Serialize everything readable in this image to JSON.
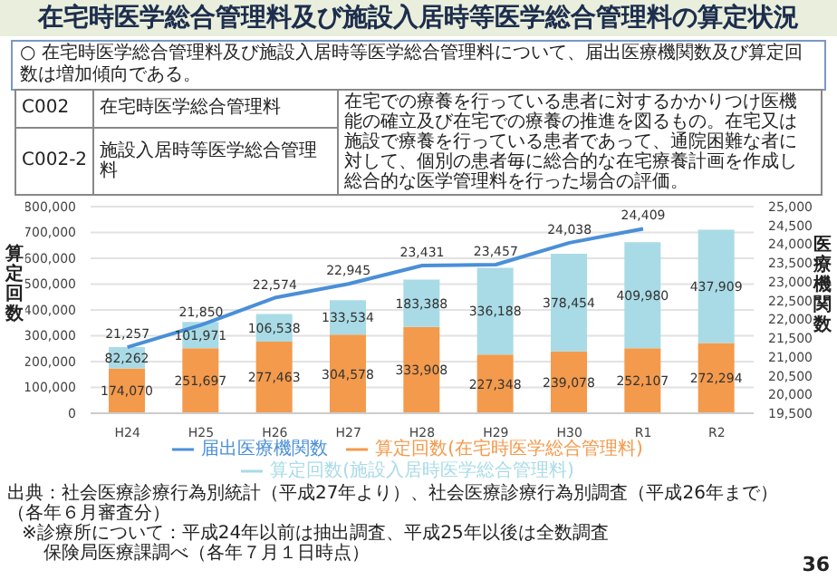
{
  "chart_data": {
    "type": "bar",
    "title": "在宅時医学総合管理料及び施設入居時等医学総合管理料の算定状況",
    "subtitle": "○ 在宅時医学総合管理料及び施設入居時等医学総合管理料について、届出医療機関数及び算定回数は増加傾向である。",
    "categories": [
      "H24",
      "H25",
      "H26",
      "H27",
      "H28",
      "H29",
      "H30",
      "R1",
      "R2"
    ],
    "series": [
      {
        "name": "算定回数(在宅時医学総合管理料)",
        "type": "bar",
        "color": "#f39a4c",
        "values": [
          174070,
          251697,
          277463,
          304578,
          333908,
          227348,
          239078,
          252107,
          272294
        ],
        "value_labels": [
          "174,070",
          "251,697",
          "277,463",
          "304,578",
          "333,908",
          "227,348",
          "239,078",
          "252,107",
          "272,294"
        ]
      },
      {
        "name": "算定回数(施設入居時医学総合管理料)",
        "type": "bar",
        "color": "#a9dbe6",
        "values": [
          82262,
          101971,
          106538,
          133534,
          183388,
          336188,
          378454,
          409980,
          437909
        ],
        "value_labels": [
          "82,262",
          "101,971",
          "106,538",
          "133,534",
          "183,388",
          "336,188",
          "378,454",
          "409,980",
          "437,909"
        ]
      },
      {
        "name": "届出医療機関数",
        "type": "line",
        "axis": "y2",
        "color": "#4a8fd8",
        "values": [
          21257,
          21850,
          22574,
          22945,
          23431,
          23457,
          24038,
          24409,
          null
        ],
        "value_labels": [
          "21,257",
          "21,850",
          "22,574",
          "22,945",
          "23,431",
          "23,457",
          "24,038",
          "24,409",
          null
        ]
      }
    ],
    "stacked": true,
    "ylabel": "算定回数",
    "y2label": "医療機関数",
    "ylim": [
      0,
      800000
    ],
    "yticks": [
      {
        "value": 0,
        "label": "0"
      },
      {
        "value": 100000,
        "label": "100,000"
      },
      {
        "value": 200000,
        "label": "200,000"
      },
      {
        "value": 300000,
        "label": "300,000"
      },
      {
        "value": 400000,
        "label": "400,000"
      },
      {
        "value": 500000,
        "label": "500,000"
      },
      {
        "value": 600000,
        "label": "600,000"
      },
      {
        "value": 700000,
        "label": "700,000"
      },
      {
        "value": 800000,
        "label": "800,000"
      }
    ],
    "y2lim": [
      19500,
      25000
    ],
    "y2ticks": [
      {
        "value": 19500,
        "label": "19,500"
      },
      {
        "value": 20000,
        "label": "20,000"
      },
      {
        "value": 20500,
        "label": "20,500"
      },
      {
        "value": 21000,
        "label": "21,000"
      },
      {
        "value": 21500,
        "label": "21,500"
      },
      {
        "value": 22000,
        "label": "22,000"
      },
      {
        "value": 22500,
        "label": "22,500"
      },
      {
        "value": 23000,
        "label": "23,000"
      },
      {
        "value": 23500,
        "label": "23,500"
      },
      {
        "value": 24000,
        "label": "24,000"
      },
      {
        "value": 24500,
        "label": "24,500"
      },
      {
        "value": 25000,
        "label": "25,000"
      }
    ],
    "grid": "y",
    "legend": "bottom",
    "marker": "none",
    "annotations": [
      "C002",
      "在宅時医学総合管理料",
      "C002-2",
      "施設入居時等医学総合管理料",
      "在宅での療養を行っている患者に対するかかりつけ医機能の確立及び在宅での療養の推進を図るもの。在宅又は施設で療養を行っている患者であって、通院困難な者に対して、個別の患者毎に総合的な在宅療養計画を作成し総合的な医学管理料を行った場合の評価。",
      "出典：社会医療診療行為別統計（平成27年より）、社会医療診療行為別調査（平成26年まで）（各年６月審査分）",
      "※診療所について：平成24年以前は抽出調査、平成25年以後は全数調査",
      "保険局医療課調べ（各年７月１日時点）",
      "36"
    ]
  }
}
